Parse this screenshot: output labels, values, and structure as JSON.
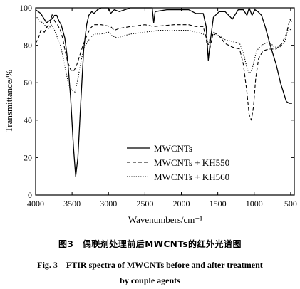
{
  "chart_data": {
    "type": "line",
    "xlabel": "Wavenumbers/cm⁻¹",
    "ylabel": "Transmittance/%",
    "xlim": [
      4000,
      450
    ],
    "ylim": [
      0,
      100
    ],
    "x_reversed": true,
    "x_ticks": [
      4000,
      3500,
      3000,
      2500,
      2000,
      1500,
      1000,
      500
    ],
    "y_ticks": [
      0,
      20,
      40,
      60,
      80,
      100
    ],
    "legend_position": "bottom-right",
    "series": [
      {
        "name": "MWCNTs",
        "style": "solid",
        "points": [
          [
            4000,
            99
          ],
          [
            3930,
            97
          ],
          [
            3850,
            92
          ],
          [
            3780,
            94
          ],
          [
            3740,
            96
          ],
          [
            3710,
            96
          ],
          [
            3680,
            93
          ],
          [
            3650,
            91
          ],
          [
            3600,
            84
          ],
          [
            3560,
            72
          ],
          [
            3520,
            52
          ],
          [
            3480,
            25
          ],
          [
            3450,
            10
          ],
          [
            3420,
            20
          ],
          [
            3380,
            50
          ],
          [
            3340,
            78
          ],
          [
            3300,
            91
          ],
          [
            3270,
            96
          ],
          [
            3230,
            98
          ],
          [
            3200,
            97
          ],
          [
            3150,
            99
          ],
          [
            3100,
            100
          ],
          [
            3000,
            100
          ],
          [
            2970,
            97
          ],
          [
            2920,
            99
          ],
          [
            2850,
            98
          ],
          [
            2700,
            100
          ],
          [
            2400,
            100
          ],
          [
            2380,
            92
          ],
          [
            2360,
            98
          ],
          [
            2200,
            99
          ],
          [
            1900,
            99
          ],
          [
            1800,
            97
          ],
          [
            1700,
            97
          ],
          [
            1660,
            90
          ],
          [
            1630,
            72
          ],
          [
            1600,
            83
          ],
          [
            1560,
            95
          ],
          [
            1480,
            98
          ],
          [
            1400,
            98
          ],
          [
            1300,
            94
          ],
          [
            1220,
            99
          ],
          [
            1150,
            99
          ],
          [
            1100,
            96
          ],
          [
            1070,
            100
          ],
          [
            1030,
            96
          ],
          [
            990,
            99
          ],
          [
            950,
            98
          ],
          [
            900,
            96
          ],
          [
            850,
            90
          ],
          [
            780,
            80
          ],
          [
            700,
            70
          ],
          [
            640,
            60
          ],
          [
            560,
            50
          ],
          [
            520,
            49
          ],
          [
            480,
            49
          ]
        ]
      },
      {
        "name": "MWCNTs + KH550",
        "style": "dashed",
        "points": [
          [
            4000,
            81
          ],
          [
            3960,
            84
          ],
          [
            3930,
            88
          ],
          [
            3880,
            87
          ],
          [
            3840,
            90
          ],
          [
            3800,
            92
          ],
          [
            3770,
            97
          ],
          [
            3740,
            93
          ],
          [
            3700,
            91
          ],
          [
            3660,
            88
          ],
          [
            3630,
            84
          ],
          [
            3600,
            78
          ],
          [
            3560,
            71
          ],
          [
            3520,
            67
          ],
          [
            3480,
            66
          ],
          [
            3440,
            69
          ],
          [
            3400,
            74
          ],
          [
            3350,
            80
          ],
          [
            3300,
            85
          ],
          [
            3250,
            89
          ],
          [
            3200,
            91
          ],
          [
            3100,
            91
          ],
          [
            2970,
            90
          ],
          [
            2920,
            88
          ],
          [
            2850,
            89
          ],
          [
            2700,
            90
          ],
          [
            2500,
            91
          ],
          [
            2380,
            90
          ],
          [
            2100,
            91
          ],
          [
            1900,
            91
          ],
          [
            1800,
            90
          ],
          [
            1700,
            90
          ],
          [
            1660,
            84
          ],
          [
            1630,
            73
          ],
          [
            1600,
            80
          ],
          [
            1560,
            87
          ],
          [
            1480,
            85
          ],
          [
            1400,
            81
          ],
          [
            1300,
            79
          ],
          [
            1200,
            78
          ],
          [
            1150,
            70
          ],
          [
            1100,
            55
          ],
          [
            1070,
            43
          ],
          [
            1040,
            40
          ],
          [
            1010,
            47
          ],
          [
            980,
            62
          ],
          [
            940,
            73
          ],
          [
            880,
            77
          ],
          [
            800,
            78
          ],
          [
            700,
            78
          ],
          [
            620,
            81
          ],
          [
            560,
            86
          ],
          [
            510,
            94
          ],
          [
            480,
            92
          ]
        ]
      },
      {
        "name": "MWCNTs + KH560",
        "style": "dotted",
        "points": [
          [
            4000,
            96
          ],
          [
            3950,
            93
          ],
          [
            3900,
            92
          ],
          [
            3860,
            90
          ],
          [
            3820,
            89
          ],
          [
            3780,
            91
          ],
          [
            3740,
            88
          ],
          [
            3700,
            84
          ],
          [
            3660,
            80
          ],
          [
            3620,
            73
          ],
          [
            3580,
            65
          ],
          [
            3540,
            58
          ],
          [
            3500,
            56
          ],
          [
            3460,
            55
          ],
          [
            3420,
            62
          ],
          [
            3380,
            71
          ],
          [
            3340,
            78
          ],
          [
            3300,
            81
          ],
          [
            3250,
            84
          ],
          [
            3200,
            86
          ],
          [
            3100,
            86
          ],
          [
            3000,
            87
          ],
          [
            2950,
            85
          ],
          [
            2880,
            84
          ],
          [
            2700,
            86
          ],
          [
            2500,
            87
          ],
          [
            2300,
            88
          ],
          [
            2100,
            88
          ],
          [
            1900,
            88
          ],
          [
            1800,
            87
          ],
          [
            1700,
            86
          ],
          [
            1660,
            85
          ],
          [
            1630,
            80
          ],
          [
            1600,
            85
          ],
          [
            1560,
            86
          ],
          [
            1480,
            85
          ],
          [
            1400,
            83
          ],
          [
            1300,
            82
          ],
          [
            1200,
            81
          ],
          [
            1150,
            76
          ],
          [
            1100,
            68
          ],
          [
            1070,
            65
          ],
          [
            1040,
            66
          ],
          [
            1010,
            70
          ],
          [
            970,
            77
          ],
          [
            900,
            80
          ],
          [
            800,
            82
          ],
          [
            720,
            79
          ],
          [
            650,
            79
          ],
          [
            580,
            82
          ],
          [
            530,
            89
          ],
          [
            490,
            88
          ]
        ]
      }
    ]
  },
  "captions": {
    "chinese": "图3　偶联剂处理前后MWCNTs的红外光谱图",
    "english_line1": "Fig. 3　FTIR spectra of MWCNTs before and after treatment",
    "english_line2": "by couple agents"
  }
}
